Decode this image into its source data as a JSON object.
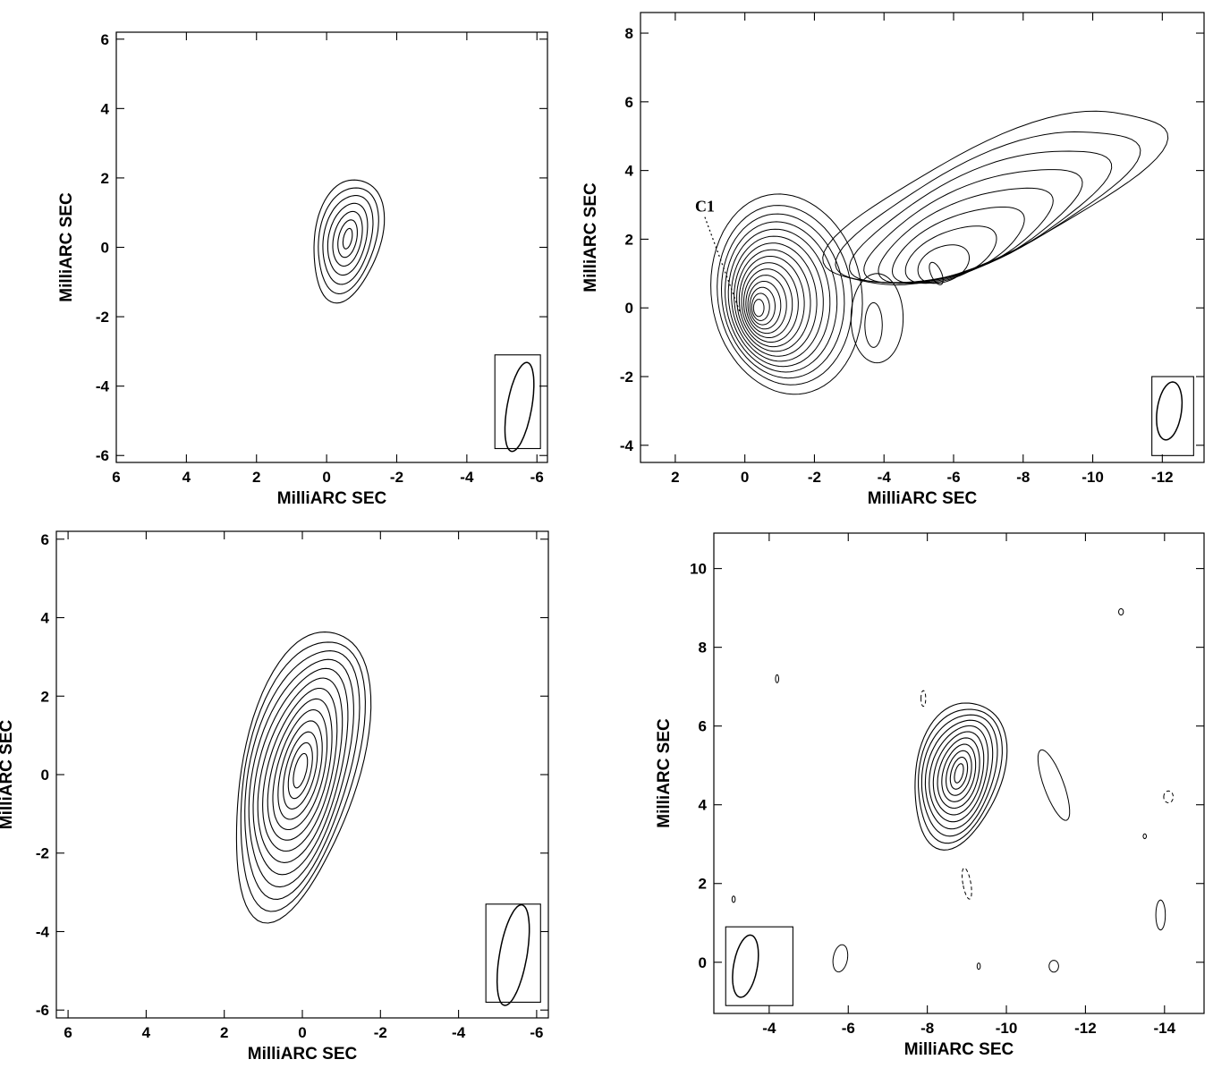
{
  "chart_data": [
    {
      "type": "contour",
      "xlabel": "MilliARC SEC",
      "ylabel": "MilliARC SEC",
      "xlim": [
        6,
        -6.3
      ],
      "ylim": [
        -6.2,
        6.2
      ],
      "xticks": [
        6,
        4,
        2,
        0,
        -2,
        -4,
        -6
      ],
      "yticks": [
        6,
        4,
        2,
        0,
        -2,
        -4,
        -6
      ],
      "contours": {
        "center": [
          -0.6,
          0.25
        ],
        "levels": 7,
        "outer_radii": [
          0.95,
          1.8
        ],
        "inner_radii": [
          0.12,
          0.3
        ],
        "pa_deg": 12
      },
      "beam": {
        "center": [
          -5.5,
          -4.6
        ],
        "radii": [
          0.35,
          1.3
        ],
        "pa_deg": 10,
        "box_x": [
          -4.8,
          -6.1
        ],
        "box_y": [
          -3.1,
          -5.8
        ]
      },
      "annotations": []
    },
    {
      "type": "contour",
      "xlabel": "MilliARC SEC",
      "ylabel": "MilliARC SEC",
      "xlim": [
        3.0,
        -13.2
      ],
      "ylim": [
        -4.5,
        8.6
      ],
      "xticks": [
        2,
        0,
        -2,
        -4,
        -6,
        -8,
        -10,
        -12
      ],
      "yticks": [
        8,
        6,
        4,
        2,
        0,
        -2,
        -4
      ],
      "contours": {
        "core_center": [
          -0.4,
          0.0
        ],
        "core_levels": 16,
        "jet_center": [
          -5.5,
          1.0
        ],
        "jet_levels": 9,
        "knot_center": [
          -3.7,
          -0.5
        ]
      },
      "beam": {
        "center": [
          -12.2,
          -3.0
        ],
        "radii": [
          0.35,
          0.85
        ],
        "pa_deg": 8,
        "box_x": [
          -11.7,
          -12.9
        ],
        "box_y": [
          -2.0,
          -4.3
        ]
      },
      "annotations": [
        {
          "text": "C1",
          "x": 1.15,
          "y": 2.8
        }
      ]
    },
    {
      "type": "contour",
      "xlabel": "MilliARC SEC",
      "ylabel": "MilliARC SEC",
      "xlim": [
        6.3,
        -6.3
      ],
      "ylim": [
        -6.2,
        6.2
      ],
      "xticks": [
        6,
        4,
        2,
        0,
        -2,
        -4,
        -6
      ],
      "yticks": [
        6,
        4,
        2,
        0,
        -2,
        -4,
        -6
      ],
      "contours": {
        "center": [
          0.05,
          0.1
        ],
        "levels": 13,
        "outer_radii": [
          1.5,
          3.8
        ],
        "inner_radii": [
          0.15,
          0.45
        ],
        "pa_deg": 14
      },
      "beam": {
        "center": [
          -5.4,
          -4.6
        ],
        "radii": [
          0.35,
          1.3
        ],
        "pa_deg": 10,
        "box_x": [
          -4.7,
          -6.1
        ],
        "box_y": [
          -3.3,
          -5.8
        ]
      },
      "annotations": []
    },
    {
      "type": "contour",
      "xlabel": "MilliARC SEC",
      "ylabel": "MilliARC SEC",
      "xlim": [
        -2.6,
        -15.0
      ],
      "ylim": [
        -1.3,
        10.9
      ],
      "xticks": [
        -4,
        -6,
        -8,
        -10,
        -12,
        -14
      ],
      "yticks": [
        10,
        8,
        6,
        4,
        2,
        0
      ],
      "contours": {
        "center": [
          -8.8,
          4.8
        ],
        "levels": 11,
        "outer_radii": [
          1.1,
          1.9
        ],
        "inner_radii": [
          0.1,
          0.25
        ],
        "pa_deg": 14
      },
      "beam": {
        "center": [
          -3.4,
          -0.1
        ],
        "radii": [
          0.3,
          0.8
        ],
        "pa_deg": 10,
        "box_x": [
          -2.9,
          -4.6
        ],
        "box_y": [
          0.9,
          -1.1
        ]
      },
      "annotations": []
    }
  ]
}
